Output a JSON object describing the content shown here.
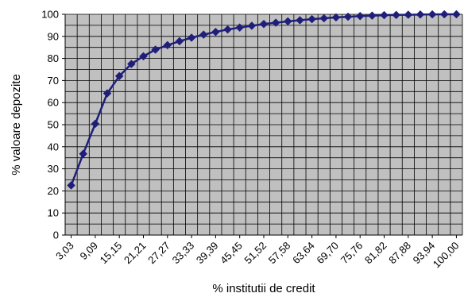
{
  "chart_data": {
    "type": "line",
    "title": "",
    "xlabel": "% institutii de credit",
    "ylabel": "% valoare depozite",
    "ylim": [
      0,
      100
    ],
    "yticks": [
      "0",
      "10",
      "20",
      "30",
      "40",
      "50",
      "60",
      "70",
      "80",
      "90",
      "100"
    ],
    "x_tick_labels": [
      "3,03",
      "9,09",
      "15,15",
      "21,21",
      "27,27",
      "33,33",
      "39,39",
      "45,45",
      "51,52",
      "57,58",
      "63,64",
      "69,70",
      "75,76",
      "81,82",
      "87,88",
      "93,94",
      "100,00"
    ],
    "x": [
      3.03,
      6.06,
      9.09,
      12.12,
      15.15,
      18.18,
      21.21,
      24.24,
      27.27,
      30.3,
      33.33,
      36.36,
      39.39,
      42.42,
      45.45,
      48.48,
      51.52,
      54.55,
      57.58,
      60.61,
      63.64,
      66.67,
      69.7,
      72.73,
      75.76,
      78.79,
      81.82,
      84.85,
      87.88,
      90.91,
      93.94,
      96.97,
      100.0
    ],
    "values": [
      22.5,
      36.8,
      50.4,
      64.2,
      72.0,
      77.5,
      81.0,
      84.0,
      86.0,
      87.8,
      89.4,
      90.8,
      92.0,
      93.1,
      94.0,
      94.8,
      95.6,
      96.2,
      96.8,
      97.3,
      97.8,
      98.2,
      98.6,
      98.9,
      99.2,
      99.4,
      99.6,
      99.7,
      99.8,
      99.9,
      99.95,
      100.0,
      100.0
    ],
    "grid": true,
    "colors": {
      "plot_background": "#c0c0c0",
      "grid": "#000000",
      "line": "#1f1f7a"
    }
  }
}
